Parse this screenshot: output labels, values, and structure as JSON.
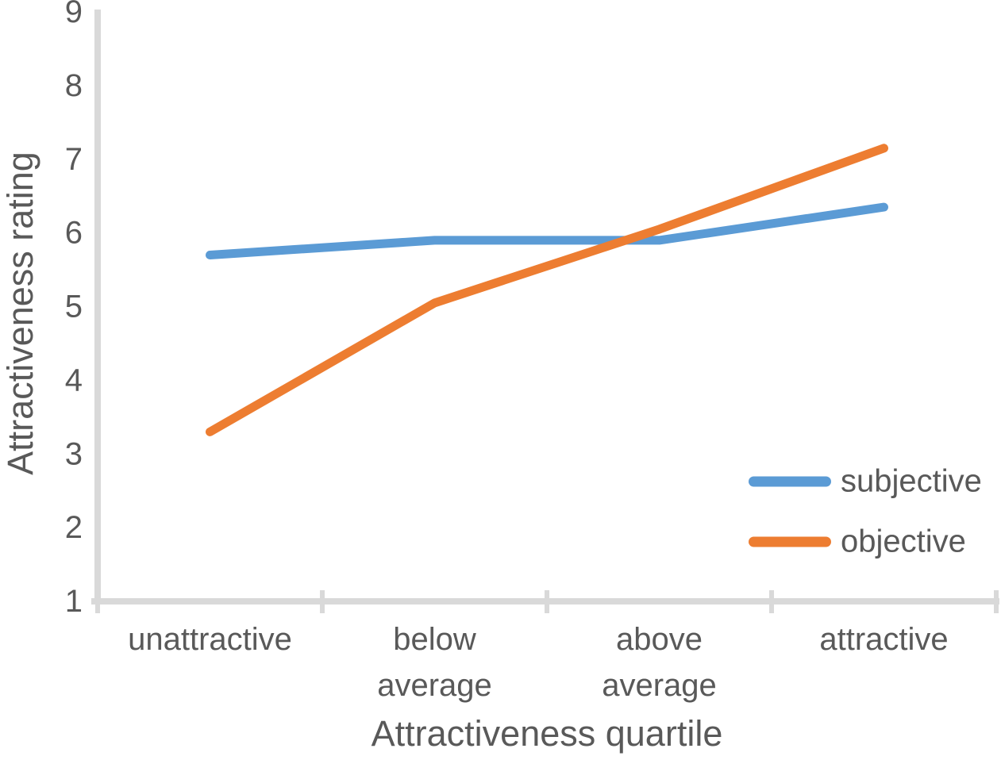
{
  "chart_data": {
    "type": "line",
    "title": "",
    "xlabel": "Attractiveness quartile",
    "ylabel": "Attractiveness rating",
    "categories": [
      "unattractive",
      "below average",
      "above average",
      "attractive"
    ],
    "series": [
      {
        "name": "subjective",
        "color": "#5B9BD5",
        "values": [
          5.7,
          5.9,
          5.9,
          6.35
        ]
      },
      {
        "name": "objective",
        "color": "#ED7D31",
        "values": [
          3.3,
          5.05,
          6.05,
          7.15
        ]
      }
    ],
    "ylim": [
      1,
      9
    ],
    "yticks": [
      1,
      2,
      3,
      4,
      5,
      6,
      7,
      8,
      9
    ],
    "grid": "off",
    "legend_position": "right-middle",
    "axis_color": "#D9D9D9",
    "text_color": "#595959",
    "line_width": 11
  }
}
